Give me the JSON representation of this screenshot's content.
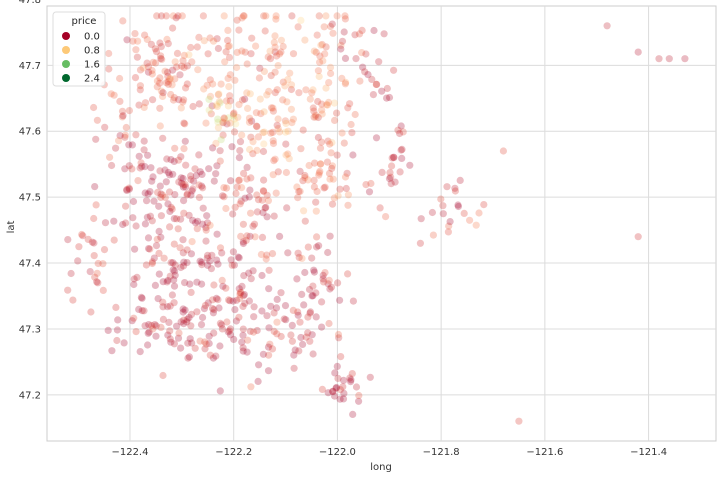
{
  "chart_data": {
    "type": "scatter",
    "xlabel": "long",
    "ylabel": "lat",
    "xlim": [
      -122.56,
      -121.27
    ],
    "ylim": [
      47.13,
      47.79
    ],
    "xticks": [
      -122.4,
      -122.2,
      -122.0,
      -121.8,
      -121.6,
      -121.4
    ],
    "xtick_labels": [
      "−122.4",
      "−122.2",
      "−122.0",
      "−121.8",
      "−121.6",
      "−121.4"
    ],
    "yticks": [
      47.2,
      47.3,
      47.4,
      47.5,
      47.6,
      47.7,
      47.8
    ],
    "ytick_labels": [
      "47.2",
      "47.3",
      "47.4",
      "47.5",
      "47.6",
      "47.7",
      "47.8"
    ],
    "grid": true,
    "legend": {
      "title": "price",
      "placement": "top-left",
      "entries": [
        {
          "label": "0.0",
          "color": "#a50026"
        },
        {
          "label": "0.8",
          "color": "#fdc978"
        },
        {
          "label": "1.6",
          "color": "#66bd63"
        },
        {
          "label": "2.4",
          "color": "#00682e"
        }
      ]
    },
    "colormap": "RdYlGn",
    "clusters": [
      {
        "cx": -122.33,
        "cy": 47.7,
        "sx": 0.04,
        "sy": 0.05,
        "n": 90,
        "price": 0.55
      },
      {
        "cx": -122.2,
        "cy": 47.71,
        "sx": 0.06,
        "sy": 0.05,
        "n": 70,
        "price": 0.6
      },
      {
        "cx": -122.06,
        "cy": 47.7,
        "sx": 0.05,
        "sy": 0.05,
        "n": 55,
        "price": 0.75
      },
      {
        "cx": -122.22,
        "cy": 47.62,
        "sx": 0.02,
        "sy": 0.02,
        "n": 22,
        "price": 1.4
      },
      {
        "cx": -122.13,
        "cy": 47.62,
        "sx": 0.04,
        "sy": 0.04,
        "n": 55,
        "price": 0.8
      },
      {
        "cx": -122.02,
        "cy": 47.6,
        "sx": 0.03,
        "sy": 0.05,
        "n": 40,
        "price": 0.6
      },
      {
        "cx": -122.38,
        "cy": 47.52,
        "sx": 0.04,
        "sy": 0.04,
        "n": 60,
        "price": 0.1
      },
      {
        "cx": -122.28,
        "cy": 47.52,
        "sx": 0.03,
        "sy": 0.04,
        "n": 55,
        "price": 0.15
      },
      {
        "cx": -122.17,
        "cy": 47.5,
        "sx": 0.04,
        "sy": 0.05,
        "n": 60,
        "price": 0.35
      },
      {
        "cx": -122.03,
        "cy": 47.52,
        "sx": 0.04,
        "sy": 0.03,
        "n": 30,
        "price": 0.5
      },
      {
        "cx": -122.32,
        "cy": 47.4,
        "sx": 0.04,
        "sy": 0.06,
        "n": 70,
        "price": 0.05
      },
      {
        "cx": -122.2,
        "cy": 47.38,
        "sx": 0.04,
        "sy": 0.06,
        "n": 75,
        "price": 0.1
      },
      {
        "cx": -122.05,
        "cy": 47.37,
        "sx": 0.04,
        "sy": 0.04,
        "n": 45,
        "price": 0.15
      },
      {
        "cx": -122.33,
        "cy": 47.3,
        "sx": 0.05,
        "sy": 0.02,
        "n": 50,
        "price": 0.08
      },
      {
        "cx": -122.2,
        "cy": 47.29,
        "sx": 0.05,
        "sy": 0.03,
        "n": 40,
        "price": 0.12
      },
      {
        "cx": -122.08,
        "cy": 47.3,
        "sx": 0.04,
        "sy": 0.03,
        "n": 30,
        "price": 0.2
      },
      {
        "cx": -121.99,
        "cy": 47.21,
        "sx": 0.02,
        "sy": 0.015,
        "n": 25,
        "price": 0.05
      },
      {
        "cx": -122.47,
        "cy": 47.42,
        "sx": 0.03,
        "sy": 0.05,
        "n": 25,
        "price": 0.4
      },
      {
        "cx": -122.44,
        "cy": 47.65,
        "sx": 0.02,
        "sy": 0.03,
        "n": 15,
        "price": 0.6
      },
      {
        "cx": -121.9,
        "cy": 47.55,
        "sx": 0.03,
        "sy": 0.03,
        "n": 25,
        "price": 0.2
      },
      {
        "cx": -121.77,
        "cy": 47.48,
        "sx": 0.03,
        "sy": 0.02,
        "n": 20,
        "price": 0.3
      },
      {
        "cx": -121.97,
        "cy": 47.73,
        "sx": 0.02,
        "sy": 0.02,
        "n": 12,
        "price": 0.2
      },
      {
        "cx": -121.92,
        "cy": 47.68,
        "sx": 0.02,
        "sy": 0.02,
        "n": 12,
        "price": 0.3
      }
    ],
    "outliers": [
      [
        -121.48,
        47.76,
        0.2
      ],
      [
        -121.42,
        47.72,
        0.1
      ],
      [
        -121.38,
        47.71,
        0.2
      ],
      [
        -121.36,
        47.71,
        0.15
      ],
      [
        -121.33,
        47.71,
        0.1
      ],
      [
        -121.42,
        47.44,
        0.3
      ],
      [
        -121.68,
        47.57,
        0.5
      ],
      [
        -121.65,
        47.16,
        0.4
      ],
      [
        -121.84,
        47.43,
        0.3
      ]
    ]
  }
}
